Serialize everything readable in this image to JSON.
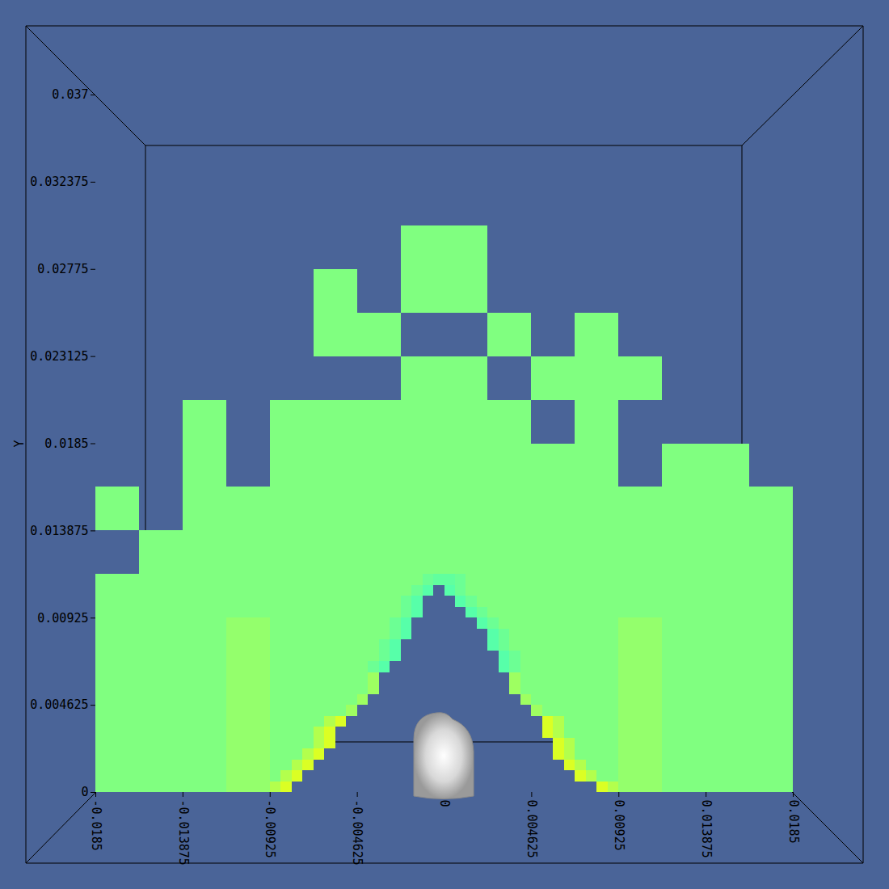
{
  "chart_data": {
    "type": "heatmap",
    "y_label": "Y",
    "xlim": [
      -0.0185,
      0.0185
    ],
    "ylim": [
      0,
      0.037
    ],
    "xticks": [
      -0.0185,
      -0.013875,
      -0.00925,
      -0.004625,
      0,
      0.004625,
      0.00925,
      0.013875,
      0.0185
    ],
    "yticks": [
      0,
      0.004625,
      0.00925,
      0.013875,
      0.0185,
      0.023125,
      0.02775,
      0.032375,
      0.037
    ],
    "value_range": [
      0,
      1
    ],
    "cells": {
      "coarse": {
        "size": 0.0023125,
        "x0": -0.0185,
        "y0": 0,
        "values": [
          [
            0.5,
            0.5,
            0.5,
            0.54,
            null,
            null,
            null,
            null,
            null,
            null,
            null,
            null,
            0.54,
            0.5,
            0.5,
            0.5
          ],
          [
            0.5,
            0.5,
            0.5,
            0.54,
            null,
            null,
            null,
            null,
            null,
            null,
            null,
            null,
            0.54,
            0.5,
            0.5,
            0.5
          ],
          [
            0.5,
            0.5,
            0.5,
            0.54,
            null,
            null,
            null,
            null,
            null,
            null,
            null,
            null,
            0.54,
            0.5,
            0.5,
            0.5
          ],
          [
            0.5,
            0.5,
            0.5,
            0.54,
            null,
            null,
            null,
            null,
            null,
            null,
            null,
            null,
            0.54,
            0.5,
            0.5,
            0.5
          ],
          [
            0.5,
            0.5,
            0.5,
            0.5,
            null,
            null,
            null,
            null,
            null,
            null,
            null,
            null,
            0.5,
            0.5,
            0.5,
            0.5
          ],
          [
            null,
            0.5,
            0.5,
            0.5,
            0.5,
            0.5,
            0.5,
            0.5,
            0.5,
            0.5,
            0.5,
            0.5,
            0.5,
            0.5,
            0.5,
            0.5
          ],
          [
            0.5,
            null,
            0.5,
            0.5,
            0.5,
            0.5,
            0.5,
            0.5,
            0.5,
            0.5,
            0.5,
            0.5,
            0.5,
            0.5,
            0.5,
            0.5
          ],
          [
            null,
            null,
            0.5,
            null,
            0.5,
            0.5,
            0.5,
            0.5,
            0.5,
            0.5,
            0.5,
            0.5,
            null,
            0.5,
            0.5,
            null
          ],
          [
            null,
            null,
            0.5,
            null,
            0.5,
            0.5,
            0.5,
            0.5,
            0.5,
            0.5,
            null,
            0.5,
            null,
            null,
            null,
            null
          ],
          [
            null,
            null,
            null,
            null,
            null,
            null,
            null,
            0.5,
            0.5,
            null,
            0.5,
            0.5,
            0.5,
            null,
            null,
            null
          ],
          [
            null,
            null,
            null,
            null,
            null,
            0.5,
            0.5,
            null,
            null,
            0.5,
            null,
            0.5,
            null,
            null,
            null,
            null
          ],
          [
            null,
            null,
            null,
            null,
            null,
            0.5,
            null,
            0.5,
            0.5,
            null,
            null,
            null,
            null,
            null,
            null,
            null
          ],
          [
            null,
            null,
            null,
            null,
            null,
            null,
            null,
            0.5,
            0.5,
            null,
            null,
            null,
            null,
            null,
            null,
            null
          ]
        ]
      },
      "fine": {
        "size": 0.000578125,
        "x0": -0.00925,
        "y0": 0,
        "values": [
          [
            0.6,
            0.68,
            null,
            null,
            null,
            null,
            null,
            null,
            null,
            null,
            null,
            null,
            null,
            null,
            null,
            null,
            null,
            null,
            null,
            null,
            null,
            null,
            null,
            null,
            null,
            null,
            null,
            null,
            null,
            null,
            0.68,
            0.6
          ],
          [
            0.5,
            0.6,
            0.68,
            null,
            null,
            null,
            null,
            null,
            null,
            null,
            null,
            null,
            null,
            null,
            null,
            null,
            null,
            null,
            null,
            null,
            null,
            null,
            null,
            null,
            null,
            null,
            null,
            null,
            0.68,
            0.6,
            0.5,
            0.5
          ],
          [
            0.5,
            0.5,
            0.6,
            0.68,
            null,
            null,
            null,
            null,
            null,
            null,
            null,
            null,
            null,
            null,
            null,
            null,
            null,
            null,
            null,
            null,
            null,
            null,
            null,
            null,
            null,
            null,
            null,
            0.68,
            0.6,
            0.5,
            0.5,
            0.5
          ],
          [
            0.5,
            0.5,
            0.5,
            0.6,
            0.68,
            null,
            null,
            null,
            null,
            null,
            null,
            null,
            null,
            null,
            null,
            null,
            null,
            null,
            null,
            null,
            null,
            null,
            null,
            null,
            null,
            null,
            0.68,
            0.6,
            0.5,
            0.5,
            0.5,
            0.5
          ],
          [
            0.5,
            0.5,
            0.5,
            0.5,
            0.6,
            0.68,
            null,
            null,
            null,
            null,
            null,
            null,
            null,
            null,
            null,
            null,
            null,
            null,
            null,
            null,
            null,
            null,
            null,
            null,
            null,
            null,
            0.68,
            0.6,
            0.5,
            0.5,
            0.5,
            0.5
          ],
          [
            0.5,
            0.5,
            0.5,
            0.5,
            0.6,
            0.68,
            null,
            null,
            null,
            null,
            null,
            null,
            null,
            null,
            null,
            null,
            null,
            null,
            null,
            null,
            null,
            null,
            null,
            null,
            null,
            0.68,
            0.6,
            0.5,
            0.5,
            0.5,
            0.5,
            0.5
          ],
          [
            0.5,
            0.5,
            0.5,
            0.5,
            0.5,
            0.6,
            0.68,
            null,
            null,
            null,
            null,
            null,
            null,
            null,
            null,
            null,
            null,
            null,
            null,
            null,
            null,
            null,
            null,
            null,
            null,
            0.68,
            0.6,
            0.5,
            0.5,
            0.5,
            0.5,
            0.5
          ],
          [
            0.5,
            0.5,
            0.5,
            0.5,
            0.5,
            0.5,
            0.5,
            0.56,
            null,
            null,
            null,
            null,
            null,
            null,
            null,
            null,
            null,
            null,
            null,
            null,
            null,
            null,
            null,
            null,
            0.56,
            0.5,
            0.5,
            0.5,
            0.5,
            0.5,
            0.5,
            0.5
          ],
          [
            0.5,
            0.5,
            0.5,
            0.5,
            0.5,
            0.5,
            0.5,
            0.5,
            0.56,
            null,
            null,
            null,
            null,
            null,
            null,
            null,
            null,
            null,
            null,
            null,
            null,
            null,
            null,
            0.56,
            0.5,
            0.5,
            0.5,
            0.5,
            0.5,
            0.5,
            0.5,
            0.5
          ],
          [
            0.5,
            0.5,
            0.5,
            0.5,
            0.5,
            0.5,
            0.5,
            0.5,
            0.5,
            0.56,
            null,
            null,
            null,
            null,
            null,
            null,
            null,
            null,
            null,
            null,
            null,
            null,
            0.56,
            0.5,
            0.5,
            0.5,
            0.5,
            0.5,
            0.5,
            0.5,
            0.5,
            0.5
          ],
          [
            0.5,
            0.5,
            0.5,
            0.5,
            0.5,
            0.5,
            0.5,
            0.5,
            0.5,
            0.56,
            null,
            null,
            null,
            null,
            null,
            null,
            null,
            null,
            null,
            null,
            null,
            null,
            0.56,
            0.5,
            0.5,
            0.5,
            0.5,
            0.5,
            0.5,
            0.5,
            0.5,
            0.5
          ],
          [
            0.5,
            0.5,
            0.5,
            0.5,
            0.5,
            0.5,
            0.5,
            0.5,
            0.5,
            0.46,
            0.42,
            null,
            null,
            null,
            null,
            null,
            null,
            null,
            null,
            null,
            null,
            0.42,
            0.46,
            0.5,
            0.5,
            0.5,
            0.5,
            0.5,
            0.5,
            0.5,
            0.5,
            0.5
          ],
          [
            0.5,
            0.5,
            0.5,
            0.5,
            0.5,
            0.5,
            0.5,
            0.5,
            0.5,
            0.5,
            0.46,
            0.42,
            null,
            null,
            null,
            null,
            null,
            null,
            null,
            null,
            null,
            0.42,
            0.46,
            0.5,
            0.5,
            0.5,
            0.5,
            0.5,
            0.5,
            0.5,
            0.5,
            0.5
          ],
          [
            0.5,
            0.5,
            0.5,
            0.5,
            0.5,
            0.5,
            0.5,
            0.5,
            0.5,
            0.5,
            0.46,
            0.42,
            null,
            null,
            null,
            null,
            null,
            null,
            null,
            null,
            0.42,
            0.46,
            0.5,
            0.5,
            0.5,
            0.5,
            0.5,
            0.5,
            0.5,
            0.5,
            0.5,
            0.5
          ],
          [
            0.5,
            0.5,
            0.5,
            0.5,
            0.5,
            0.5,
            0.5,
            0.5,
            0.5,
            0.5,
            0.5,
            0.46,
            0.42,
            null,
            null,
            null,
            null,
            null,
            null,
            null,
            0.42,
            0.46,
            0.5,
            0.5,
            0.5,
            0.5,
            0.5,
            0.5,
            0.5,
            0.5,
            0.5,
            0.5
          ],
          [
            0.5,
            0.5,
            0.5,
            0.5,
            0.5,
            0.5,
            0.5,
            0.5,
            0.5,
            0.5,
            0.5,
            0.46,
            0.42,
            null,
            null,
            null,
            null,
            null,
            null,
            0.42,
            0.46,
            0.5,
            0.5,
            0.5,
            0.5,
            0.5,
            0.5,
            0.5,
            0.5,
            0.5,
            0.5,
            0.5
          ],
          [
            0.5,
            0.5,
            0.5,
            0.5,
            0.5,
            0.5,
            0.5,
            0.5,
            0.5,
            0.5,
            0.5,
            0.5,
            0.46,
            0.42,
            null,
            null,
            null,
            null,
            0.42,
            0.46,
            0.5,
            0.5,
            0.5,
            0.5,
            0.5,
            0.5,
            0.5,
            0.5,
            0.5,
            0.5,
            0.5,
            0.5
          ],
          [
            0.5,
            0.5,
            0.5,
            0.5,
            0.5,
            0.5,
            0.5,
            0.5,
            0.5,
            0.5,
            0.5,
            0.5,
            0.46,
            0.42,
            null,
            null,
            null,
            0.42,
            0.46,
            0.5,
            0.5,
            0.5,
            0.5,
            0.5,
            0.5,
            0.5,
            0.5,
            0.5,
            0.5,
            0.5,
            0.5,
            0.5
          ],
          [
            0.5,
            0.5,
            0.5,
            0.5,
            0.5,
            0.5,
            0.5,
            0.5,
            0.5,
            0.5,
            0.5,
            0.5,
            0.5,
            0.46,
            0.42,
            null,
            0.42,
            0.46,
            0.5,
            0.5,
            0.5,
            0.5,
            0.5,
            0.5,
            0.5,
            0.5,
            0.5,
            0.5,
            0.5,
            0.5,
            0.5,
            0.5
          ],
          [
            0.5,
            0.5,
            0.5,
            0.5,
            0.5,
            0.5,
            0.5,
            0.5,
            0.5,
            0.5,
            0.5,
            0.5,
            0.5,
            0.5,
            0.46,
            0.44,
            0.44,
            0.46,
            0.5,
            0.5,
            0.5,
            0.5,
            0.5,
            0.5,
            0.5,
            0.5,
            0.5,
            0.5,
            0.5,
            0.5,
            0.5,
            0.5
          ]
        ]
      }
    }
  }
}
